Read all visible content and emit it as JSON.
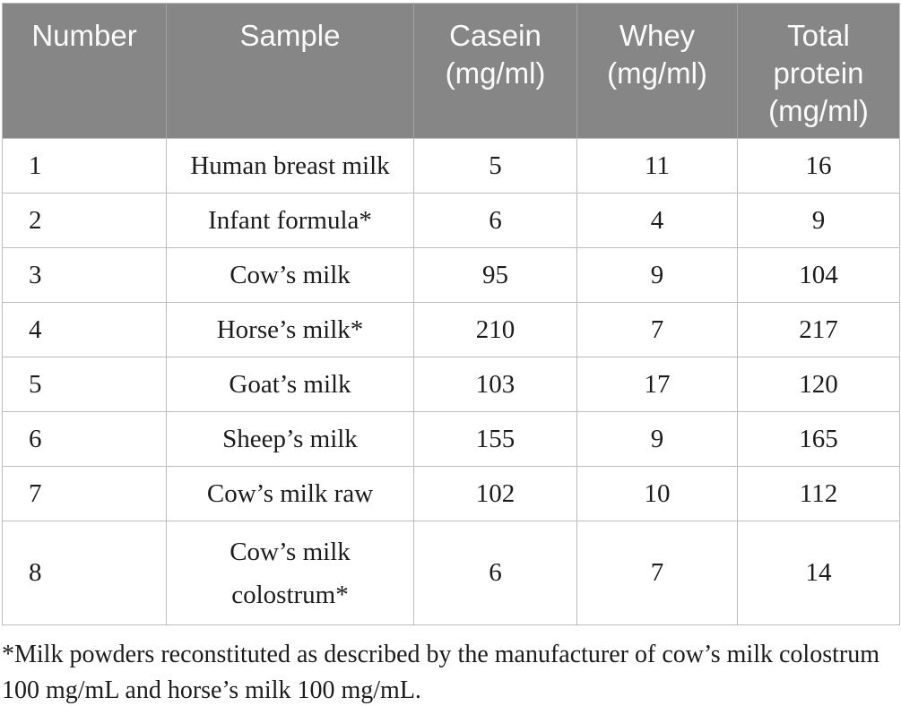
{
  "colors": {
    "header_bg": "#868686",
    "header_text": "#fbfbfb",
    "body_text": "#1c1c1c",
    "border": "#bdbdbd",
    "header_divider": "#a3a3a3"
  },
  "table": {
    "headers": [
      {
        "id": "number",
        "label": "Number"
      },
      {
        "id": "sample",
        "label": "Sample"
      },
      {
        "id": "casein",
        "label": "Casein (mg/ml)"
      },
      {
        "id": "whey",
        "label": "Whey (mg/ml)"
      },
      {
        "id": "total_protein",
        "label": "Total protein (mg/ml)"
      }
    ],
    "rows": [
      {
        "number": "1",
        "sample": "Human breast milk",
        "casein": "5",
        "whey": "11",
        "total": "16"
      },
      {
        "number": "2",
        "sample": "Infant formula*",
        "casein": "6",
        "whey": "4",
        "total": "9"
      },
      {
        "number": "3",
        "sample": "Cow’s milk",
        "casein": "95",
        "whey": "9",
        "total": "104"
      },
      {
        "number": "4",
        "sample": "Horse’s milk*",
        "casein": "210",
        "whey": "7",
        "total": "217"
      },
      {
        "number": "5",
        "sample": "Goat’s milk",
        "casein": "103",
        "whey": "17",
        "total": "120"
      },
      {
        "number": "6",
        "sample": "Sheep’s milk",
        "casein": "155",
        "whey": "9",
        "total": "165"
      },
      {
        "number": "7",
        "sample": "Cow’s milk raw",
        "casein": "102",
        "whey": "10",
        "total": "112"
      },
      {
        "number": "8",
        "sample": "Cow’s milk\ncolostrum*",
        "casein": "6",
        "whey": "7",
        "total": "14"
      }
    ]
  },
  "footnote": {
    "lines": [
      "*Milk powders reconstituted as described by the manufacturer of cow’s milk colostrum",
      "100 mg/mL and horse’s milk 100 mg/mL."
    ]
  }
}
